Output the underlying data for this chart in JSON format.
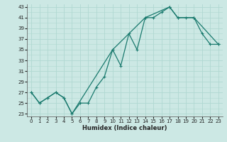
{
  "title": "",
  "xlabel": "Humidex (Indice chaleur)",
  "bg_color": "#cce8e4",
  "grid_color": "#b0d8d2",
  "line_color": "#1a7a6e",
  "xlim": [
    -0.5,
    23.5
  ],
  "ylim": [
    22.5,
    43.5
  ],
  "xticks": [
    0,
    1,
    2,
    3,
    4,
    5,
    6,
    7,
    8,
    9,
    10,
    11,
    12,
    13,
    14,
    15,
    16,
    17,
    18,
    19,
    20,
    21,
    22,
    23
  ],
  "yticks": [
    23,
    25,
    27,
    29,
    31,
    33,
    35,
    37,
    39,
    41,
    43
  ],
  "line1_x": [
    0,
    1,
    2,
    3,
    4,
    5,
    6,
    7,
    8,
    9,
    10,
    11,
    12,
    13,
    14,
    15,
    16,
    17,
    18,
    19,
    20,
    21,
    22,
    23
  ],
  "line1_y": [
    27,
    25,
    26,
    27,
    26,
    23,
    25,
    25,
    28,
    30,
    35,
    32,
    38,
    35,
    41,
    41,
    42,
    43,
    41,
    41,
    41,
    38,
    36,
    36
  ],
  "line2_x": [
    0,
    1,
    2,
    3,
    4,
    5,
    10,
    14,
    17,
    18,
    20,
    23
  ],
  "line2_y": [
    27,
    25,
    26,
    27,
    26,
    23,
    35,
    41,
    43,
    41,
    41,
    36
  ],
  "marker_size": 2.5,
  "line_width": 0.9
}
